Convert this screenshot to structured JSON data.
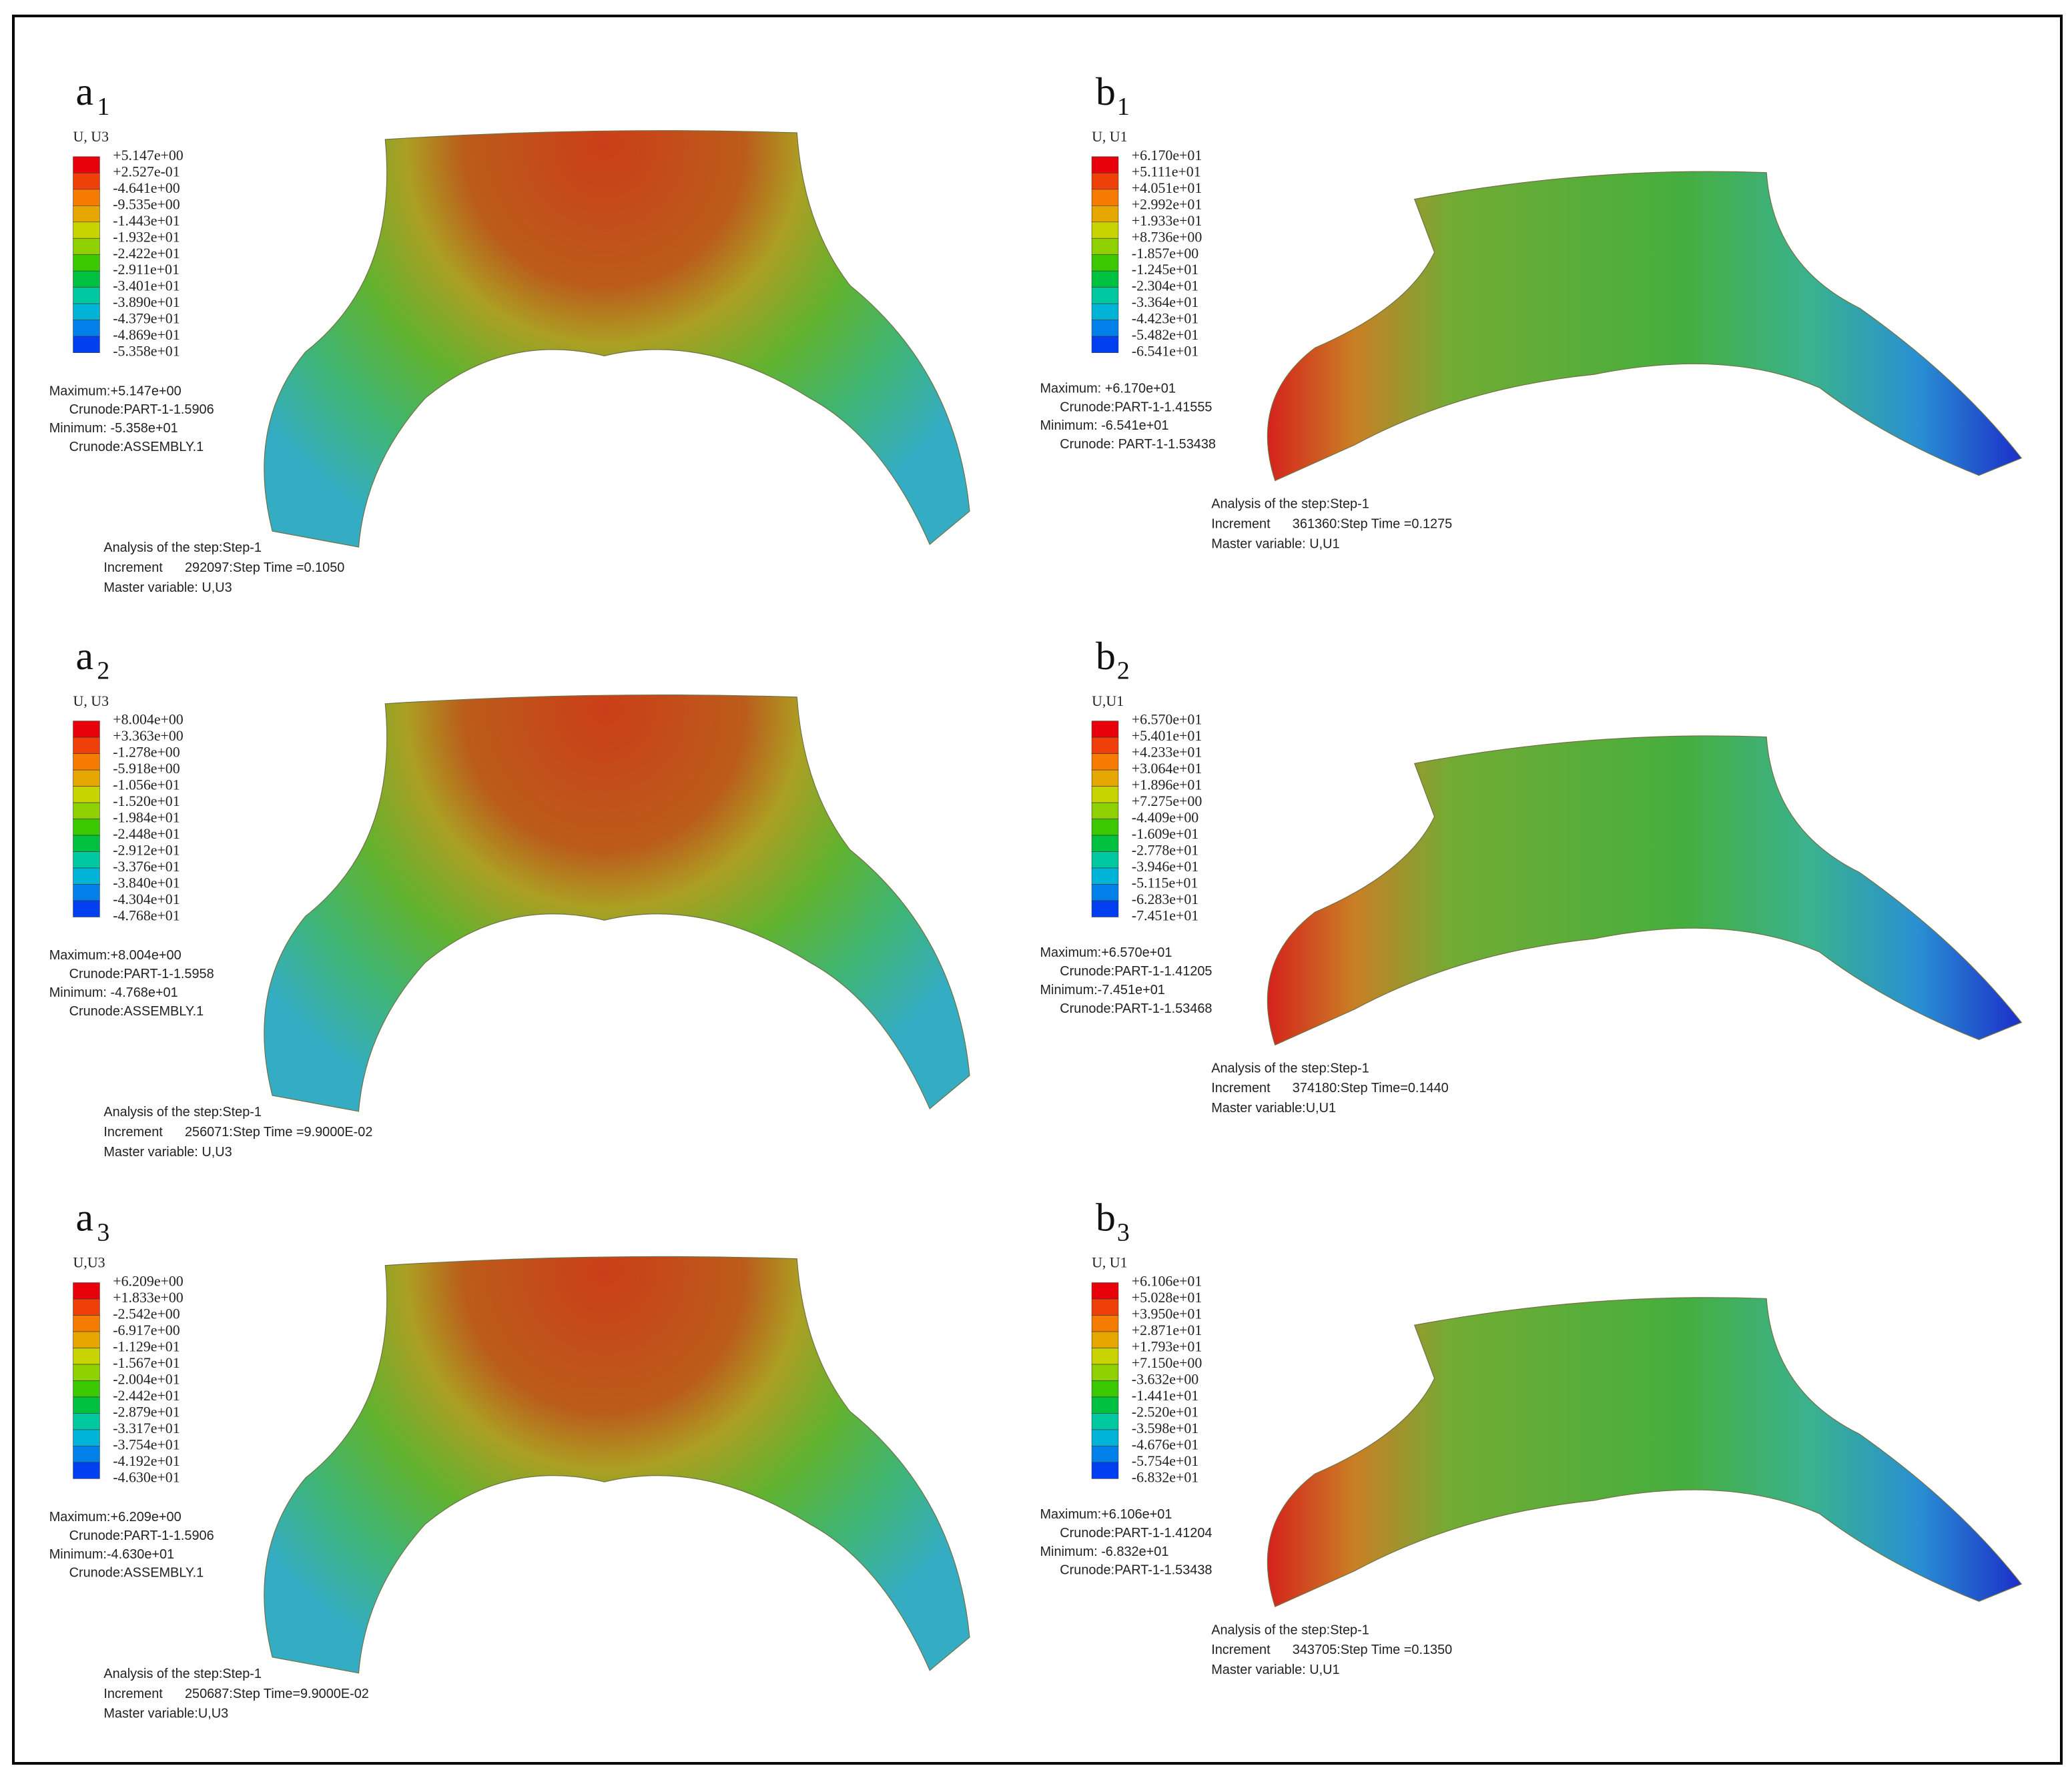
{
  "panels": [
    {
      "label": "a",
      "subscript": "1",
      "variable": "U, U3",
      "legend": [
        "+5.147e+00",
        "+2.527e-01",
        "-4.641e+00",
        "-9.535e+00",
        "-1.443e+01",
        "-1.932e+01",
        "-2.422e+01",
        "-2.911e+01",
        "-3.401e+01",
        "-3.890e+01",
        "-4.379e+01",
        "-4.869e+01",
        "-5.358e+01"
      ],
      "maximum": "Maximum:+5.147e+00",
      "max_crunode": "Crunode:PART-1-1.5906",
      "minimum": "Minimum: -5.358e+01",
      "min_crunode": "Crunode:ASSEMBLY.1",
      "analysis": "Analysis of the step:Step-1",
      "increment": "Increment      292097:Step Time =0.1050",
      "master_variable": "Master variable: U,U3"
    },
    {
      "label": "b",
      "subscript": "1",
      "variable": "U, U1",
      "legend": [
        "+6.170e+01",
        "+5.111e+01",
        "+4.051e+01",
        "+2.992e+01",
        "+1.933e+01",
        "+8.736e+00",
        "-1.857e+00",
        "-1.245e+01",
        "-2.304e+01",
        "-3.364e+01",
        "-4.423e+01",
        "-5.482e+01",
        "-6.541e+01"
      ],
      "maximum": "Maximum: +6.170e+01",
      "max_crunode": "Crunode:PART-1-1.41555",
      "minimum": "Minimum: -6.541e+01",
      "min_crunode": "Crunode: PART-1-1.53438",
      "analysis": "Analysis of the step:Step-1",
      "increment": "Increment      361360:Step Time =0.1275",
      "master_variable": "Master variable: U,U1"
    },
    {
      "label": "a",
      "subscript": "2",
      "variable": "U, U3",
      "legend": [
        "+8.004e+00",
        "+3.363e+00",
        "-1.278e+00",
        "-5.918e+00",
        "-1.056e+01",
        "-1.520e+01",
        "-1.984e+01",
        "-2.448e+01",
        "-2.912e+01",
        "-3.376e+01",
        "-3.840e+01",
        "-4.304e+01",
        "-4.768e+01"
      ],
      "maximum": "Maximum:+8.004e+00",
      "max_crunode": "Crunode:PART-1-1.5958",
      "minimum": "Minimum: -4.768e+01",
      "min_crunode": "Crunode:ASSEMBLY.1",
      "analysis": "Analysis of the step:Step-1",
      "increment": "Increment      256071:Step Time =9.9000E-02",
      "master_variable": "Master variable: U,U3"
    },
    {
      "label": "b",
      "subscript": "2",
      "variable": "U,U1",
      "legend": [
        "+6.570e+01",
        "+5.401e+01",
        "+4.233e+01",
        "+3.064e+01",
        "+1.896e+01",
        "+7.275e+00",
        "-4.409e+00",
        "-1.609e+01",
        "-2.778e+01",
        "-3.946e+01",
        "-5.115e+01",
        "-6.283e+01",
        "-7.451e+01"
      ],
      "maximum": "Maximum:+6.570e+01",
      "max_crunode": "Crunode:PART-1-1.41205",
      "minimum": "Minimum:-7.451e+01",
      "min_crunode": "Crunode:PART-1-1.53468",
      "analysis": "Analysis of the step:Step-1",
      "increment": "Increment      374180:Step Time=0.1440",
      "master_variable": "Master variable:U,U1"
    },
    {
      "label": "a",
      "subscript": "3",
      "variable": "U,U3",
      "legend": [
        "+6.209e+00",
        "+1.833e+00",
        "-2.542e+00",
        "-6.917e+00",
        "-1.129e+01",
        "-1.567e+01",
        "-2.004e+01",
        "-2.442e+01",
        "-2.879e+01",
        "-3.317e+01",
        "-3.754e+01",
        "-4.192e+01",
        "-4.630e+01"
      ],
      "maximum": "Maximum:+6.209e+00",
      "max_crunode": "Crunode:PART-1-1.5906",
      "minimum": "Minimum:-4.630e+01",
      "min_crunode": "Crunode:ASSEMBLY.1",
      "analysis": "Analysis of the step:Step-1",
      "increment": "Increment      250687:Step Time=9.9000E-02",
      "master_variable": "Master variable:U,U3"
    },
    {
      "label": "b",
      "subscript": "3",
      "variable": "U, U1",
      "legend": [
        "+6.106e+01",
        "+5.028e+01",
        "+3.950e+01",
        "+2.871e+01",
        "+1.793e+01",
        "+7.150e+00",
        "-3.632e+00",
        "-1.441e+01",
        "-2.520e+01",
        "-3.598e+01",
        "-4.676e+01",
        "-5.754e+01",
        "-6.832e+01"
      ],
      "maximum": "Maximum:+6.106e+01",
      "max_crunode": "Crunode:PART-1-1.41204",
      "minimum": "Minimum: -6.832e+01",
      "min_crunode": "Crunode:PART-1-1.53438",
      "analysis": "Analysis of the step:Step-1",
      "increment": "Increment      343705:Step Time =0.1350",
      "master_variable": "Master variable: U,U1"
    }
  ]
}
